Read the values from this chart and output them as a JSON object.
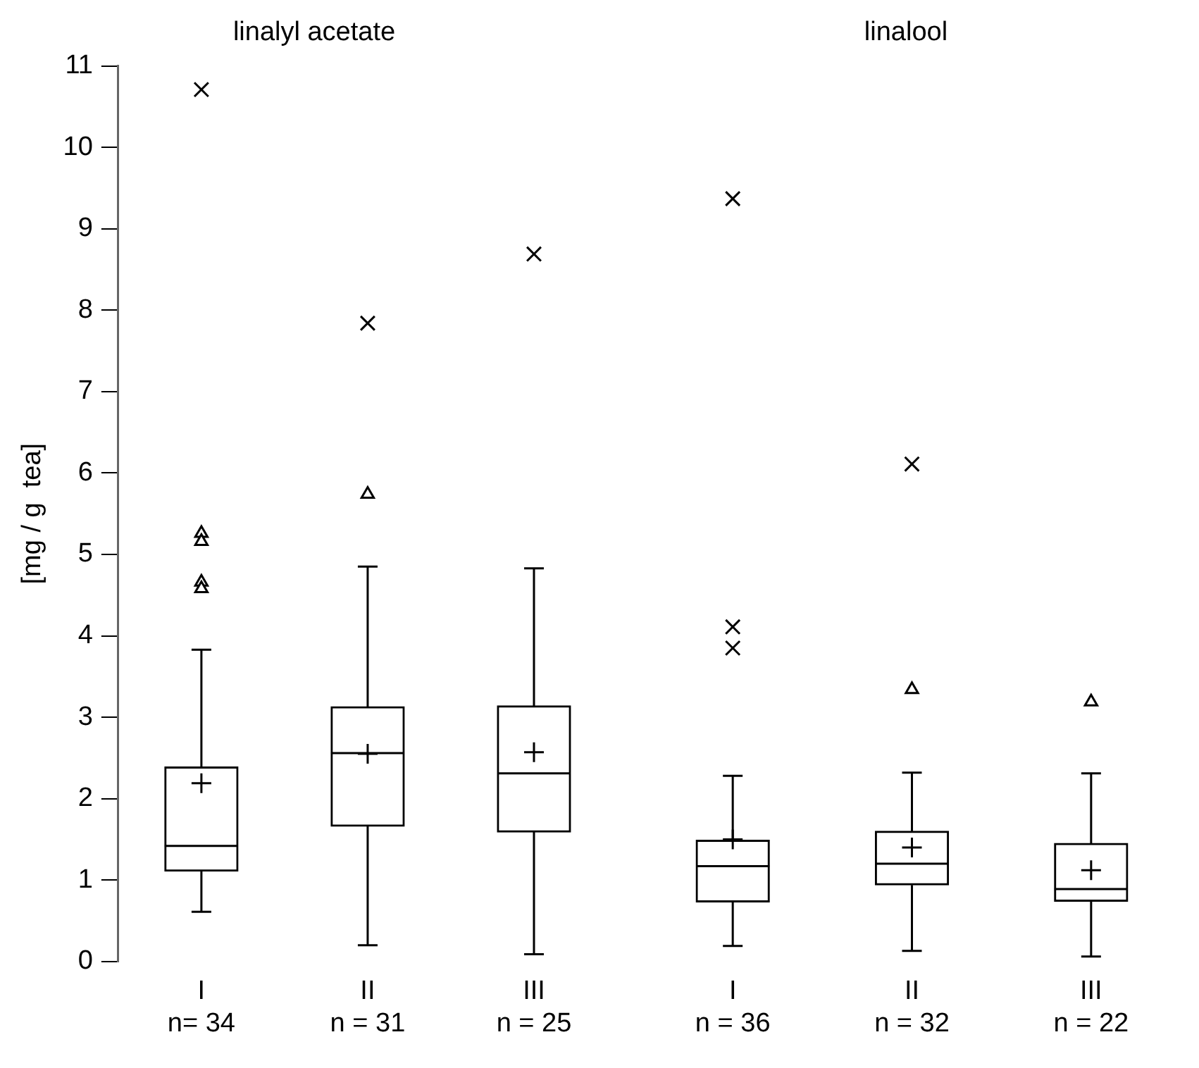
{
  "chart_data": [
    {
      "type": "box",
      "title": "linalyl acetate",
      "ylabel": "[mg / g  tea]",
      "categories": [
        "I\nn= 34",
        "II\nn = 31",
        "III\nn = 25"
      ],
      "ylim": [
        0,
        11
      ],
      "yticks": [
        0,
        1,
        2,
        3,
        4,
        5,
        6,
        7,
        8,
        9,
        10,
        11
      ],
      "grid": false,
      "legend": false,
      "series": [
        {
          "type": "box",
          "color": "#000000",
          "boxes": [
            {
              "low": 0.61,
              "q1": 1.11,
              "median": 1.42,
              "q3": 2.39,
              "high": 3.83,
              "mean": 2.19,
              "outliers": [
                5.26,
                5.16,
                4.66,
                4.58
              ]
            },
            {
              "low": 0.2,
              "q1": 1.66,
              "median": 2.56,
              "q3": 3.13,
              "high": 4.85,
              "mean": 2.55,
              "outliers": [
                5.74
              ]
            },
            {
              "low": 0.09,
              "q1": 1.59,
              "median": 2.31,
              "q3": 3.14,
              "high": 4.83,
              "mean": 2.57
            }
          ]
        },
        {
          "type": "scatter",
          "marker": "cross",
          "color": "#000000",
          "x": [
            "I\nn= 34",
            "II\nn = 31",
            "III\nn = 25"
          ],
          "values": [
            10.71,
            7.84,
            8.69
          ]
        }
      ]
    },
    {
      "type": "box",
      "title": "linalool",
      "categories": [
        "I\nn = 36",
        "II\nn = 32",
        "III\nn = 22"
      ],
      "ylim": [
        0,
        11
      ],
      "tick_labels": "x",
      "grid": false,
      "legend": false,
      "series": [
        {
          "type": "box",
          "color": "#000000",
          "boxes": [
            {
              "low": 0.19,
              "q1": 0.73,
              "median": 1.17,
              "q3": 1.49,
              "high": 2.28,
              "mean": 1.5
            },
            {
              "low": 0.13,
              "q1": 0.94,
              "median": 1.2,
              "q3": 1.6,
              "high": 2.32,
              "mean": 1.4,
              "outliers": [
                3.34
              ]
            },
            {
              "low": 0.06,
              "q1": 0.74,
              "median": 0.89,
              "q3": 1.45,
              "high": 2.31,
              "mean": 1.12,
              "outliers": [
                3.19
              ]
            }
          ]
        },
        {
          "type": "scatter",
          "marker": "cross",
          "color": "#000000",
          "x": [
            "I\nn = 36",
            "I\nn = 36",
            "I\nn = 36",
            "II\nn = 32"
          ],
          "values": [
            9.37,
            4.11,
            3.85,
            6.11
          ]
        }
      ]
    }
  ]
}
